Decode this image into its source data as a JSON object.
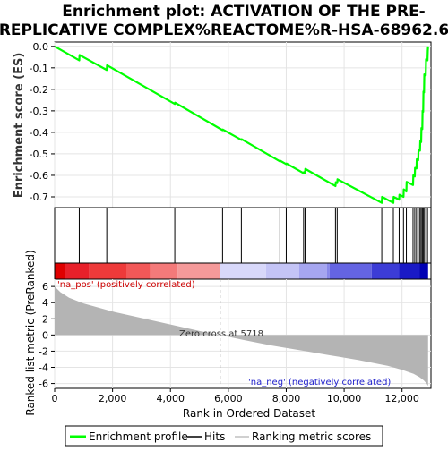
{
  "chart_data": {
    "type": "line",
    "title_lines": [
      "Enrichment plot: ACTIVATION OF THE PRE-",
      "REPLICATIVE COMPLEX%REACTOME%R-HSA-68962.6"
    ],
    "es_panel": {
      "ylabel": "Enrichment score (ES)",
      "ylim": [
        -0.75,
        0.02
      ],
      "yticks": [
        0.0,
        -0.1,
        -0.2,
        -0.3,
        -0.4,
        -0.5,
        -0.6,
        -0.7
      ],
      "ytick_labels": [
        "0.0",
        "-0.1",
        "-0.2",
        "-0.3",
        "-0.4",
        "-0.5",
        "-0.6",
        "-0.7"
      ],
      "series": [
        {
          "name": "Enrichment profile",
          "color": "#00ff00",
          "x": [
            0,
            850,
            860,
            1800,
            1810,
            4150,
            4160,
            5800,
            5810,
            6450,
            6460,
            7780,
            7790,
            8000,
            8010,
            8600,
            8610,
            8650,
            8660,
            9700,
            9710,
            9760,
            9770,
            11300,
            11310,
            11700,
            11710,
            11900,
            11910,
            12050,
            12060,
            12150,
            12160,
            12380,
            12390,
            12440,
            12450,
            12500,
            12510,
            12560,
            12570,
            12620,
            12630,
            12660,
            12670,
            12700,
            12710,
            12730,
            12740,
            12760,
            12770,
            12820,
            12830,
            12880,
            12890,
            12900
          ],
          "y": [
            0.0,
            -0.065,
            -0.04,
            -0.11,
            -0.088,
            -0.268,
            -0.262,
            -0.39,
            -0.387,
            -0.435,
            -0.432,
            -0.535,
            -0.532,
            -0.548,
            -0.545,
            -0.59,
            -0.585,
            -0.588,
            -0.57,
            -0.65,
            -0.632,
            -0.636,
            -0.618,
            -0.728,
            -0.7,
            -0.728,
            -0.7,
            -0.713,
            -0.69,
            -0.7,
            -0.665,
            -0.675,
            -0.63,
            -0.645,
            -0.6,
            -0.605,
            -0.565,
            -0.568,
            -0.525,
            -0.53,
            -0.48,
            -0.485,
            -0.44,
            -0.445,
            -0.38,
            -0.385,
            -0.3,
            -0.305,
            -0.21,
            -0.215,
            -0.13,
            -0.135,
            -0.06,
            -0.065,
            -0.02,
            0.0
          ]
        }
      ]
    },
    "hits": [
      850,
      1800,
      4150,
      5800,
      6450,
      7780,
      8000,
      8600,
      8650,
      9700,
      9760,
      11300,
      11700,
      11900,
      12050,
      12150,
      12380,
      12440,
      12500,
      12560,
      12620,
      12660,
      12700,
      12730,
      12760,
      12820,
      12880
    ],
    "heatmap_band": {
      "colors": [
        "#e00000",
        "#e8202a",
        "#ee3a3a",
        "#f25858",
        "#f47a7a",
        "#f59a9a",
        "#d8d8fa",
        "#c4c4f6",
        "#a6a6f0",
        "#8888ea",
        "#6464e2",
        "#3c3cd6",
        "#1a1ac6",
        "#0000b4"
      ],
      "stops": [
        0,
        350,
        1200,
        2500,
        3300,
        4250,
        5718,
        7300,
        8450,
        9400,
        9500,
        10950,
        11900,
        12600,
        12900
      ]
    },
    "metric_panel": {
      "ylabel": "Ranked list metric (PreRanked)",
      "ylim": [
        -6.6,
        6.9
      ],
      "yticks": [
        6,
        4,
        2,
        0,
        -2,
        -4,
        -6
      ],
      "ytick_labels": [
        "6",
        "4",
        "2",
        "0",
        "-2",
        "-4",
        "-6"
      ],
      "x": [
        0,
        200,
        500,
        1000,
        1500,
        2000,
        3000,
        4000,
        5000,
        5718,
        6500,
        7500,
        8500,
        9500,
        10500,
        11500,
        12000,
        12400,
        12600,
        12750,
        12850,
        12900
      ],
      "values": [
        6.0,
        5.3,
        4.6,
        3.9,
        3.4,
        2.9,
        2.1,
        1.3,
        0.5,
        0.0,
        -0.6,
        -1.3,
        -1.9,
        -2.5,
        -3.1,
        -3.8,
        -4.3,
        -4.8,
        -5.2,
        -5.6,
        -6.0,
        -6.3
      ],
      "label_pos": "'na_pos' (positively correlated)",
      "label_neg": "'na_neg' (negatively correlated)",
      "zero_cross_label": "Zero cross at 5718",
      "zero_cross_x": 5718
    },
    "xaxis": {
      "xlabel": "Rank in Ordered Dataset",
      "xlim": [
        0,
        13000
      ],
      "xticks": [
        0,
        2000,
        4000,
        6000,
        8000,
        10000,
        12000
      ],
      "xtick_labels": [
        "0",
        "2,000",
        "4,000",
        "6,000",
        "8,000",
        "10,000",
        "12,000"
      ]
    },
    "legend": {
      "placement": "bottom",
      "items": [
        {
          "label": "Enrichment profile",
          "color": "#00ff00"
        },
        {
          "label": "Hits",
          "color": "#000000"
        },
        {
          "label": "Ranking metric scores",
          "color": "#c0c0c0"
        }
      ]
    }
  }
}
